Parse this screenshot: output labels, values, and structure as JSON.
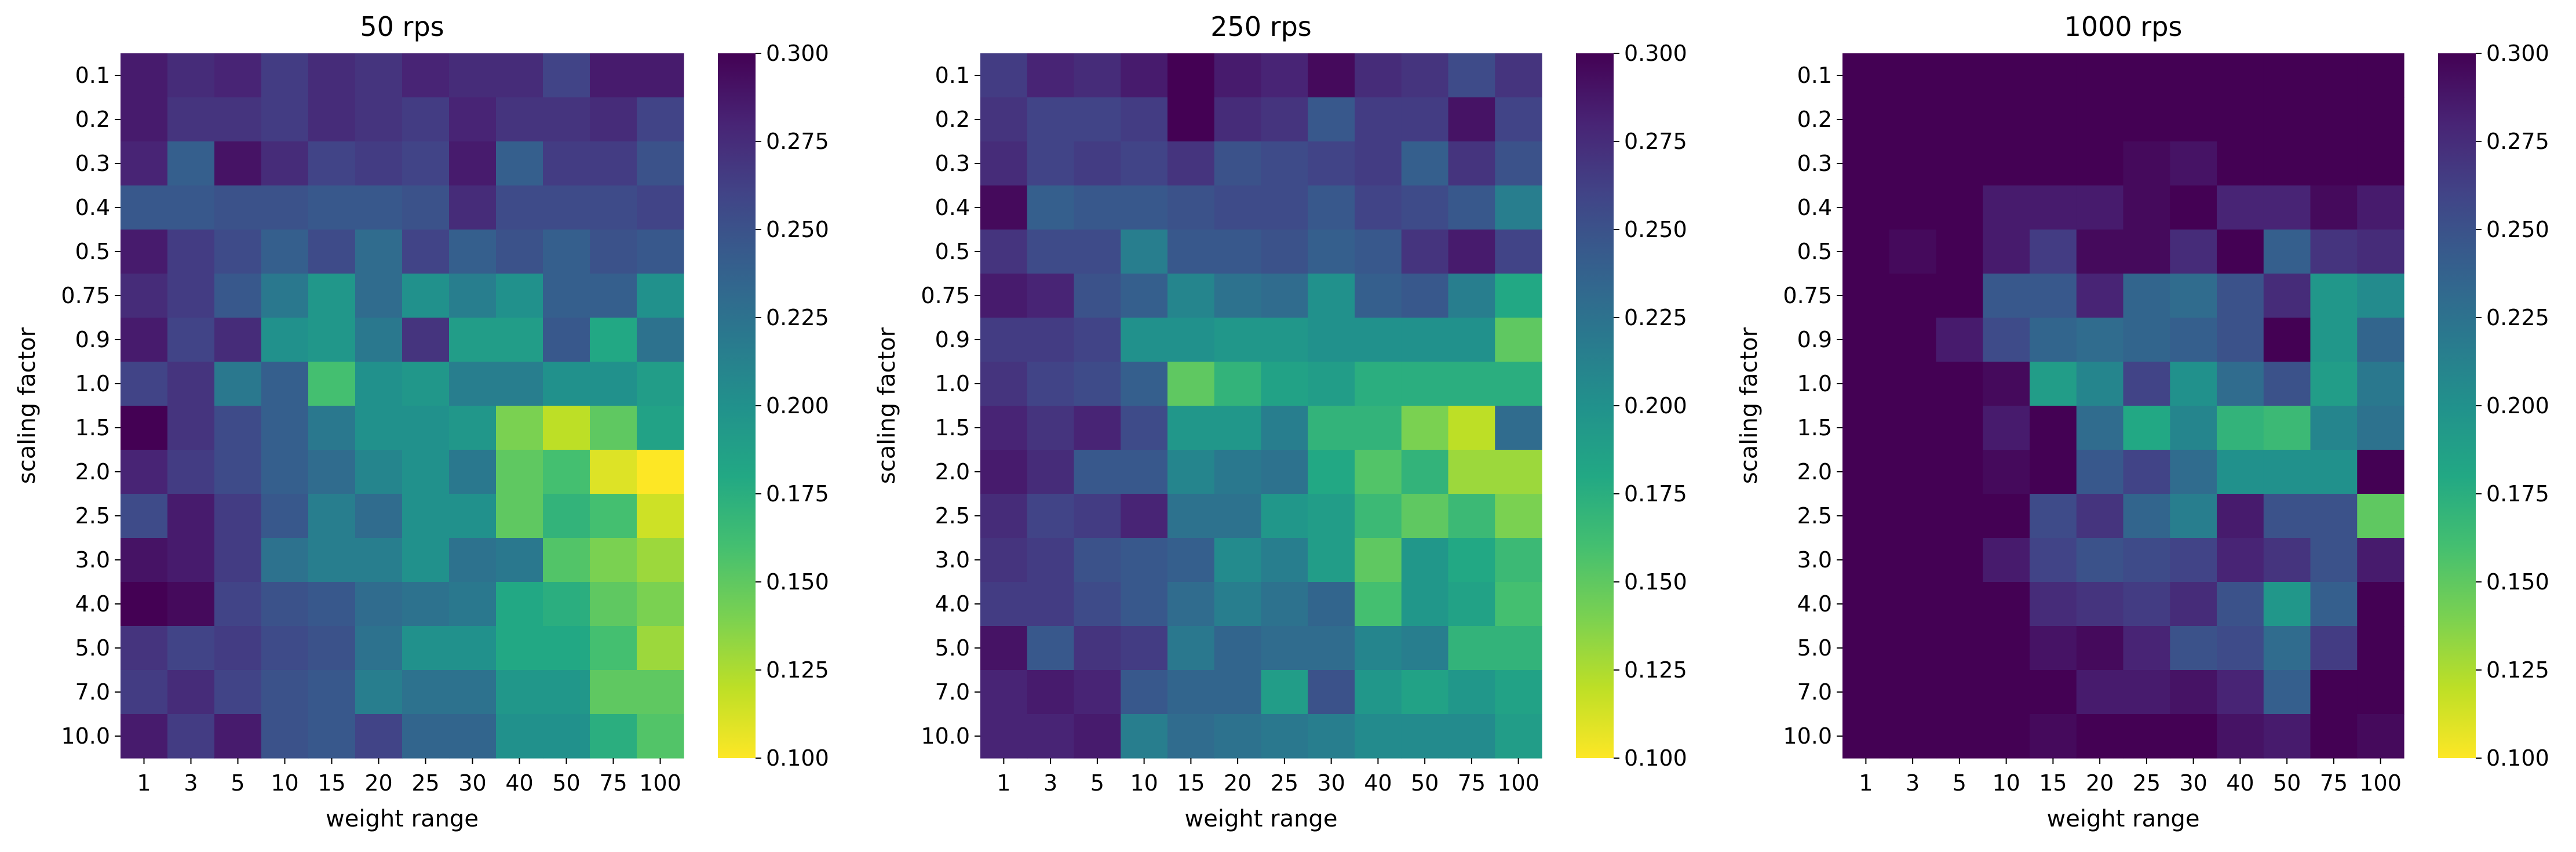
{
  "chart_data": [
    {
      "type": "heatmap",
      "title": "50 rps",
      "xlabel": "weight range",
      "ylabel": "scaling factor",
      "x_categories": [
        "1",
        "3",
        "5",
        "10",
        "15",
        "20",
        "25",
        "30",
        "40",
        "50",
        "75",
        "100"
      ],
      "y_categories": [
        "0.1",
        "0.2",
        "0.3",
        "0.4",
        "0.5",
        "0.75",
        "0.9",
        "1.0",
        "1.5",
        "2.0",
        "2.5",
        "3.0",
        "4.0",
        "5.0",
        "7.0",
        "10.0"
      ],
      "values": [
        [
          0.285,
          0.275,
          0.28,
          0.265,
          0.275,
          0.27,
          0.28,
          0.275,
          0.275,
          0.26,
          0.285,
          0.285
        ],
        [
          0.285,
          0.27,
          0.27,
          0.265,
          0.275,
          0.27,
          0.265,
          0.28,
          0.27,
          0.27,
          0.275,
          0.26
        ],
        [
          0.28,
          0.24,
          0.29,
          0.275,
          0.26,
          0.265,
          0.26,
          0.285,
          0.24,
          0.265,
          0.265,
          0.25
        ],
        [
          0.245,
          0.245,
          0.25,
          0.25,
          0.245,
          0.245,
          0.25,
          0.275,
          0.255,
          0.255,
          0.255,
          0.26
        ],
        [
          0.285,
          0.265,
          0.255,
          0.24,
          0.255,
          0.23,
          0.26,
          0.24,
          0.25,
          0.24,
          0.25,
          0.245
        ],
        [
          0.275,
          0.265,
          0.245,
          0.22,
          0.195,
          0.23,
          0.2,
          0.215,
          0.2,
          0.24,
          0.24,
          0.2
        ],
        [
          0.285,
          0.26,
          0.275,
          0.2,
          0.195,
          0.22,
          0.27,
          0.19,
          0.19,
          0.245,
          0.18,
          0.225
        ],
        [
          0.26,
          0.27,
          0.22,
          0.24,
          0.16,
          0.2,
          0.195,
          0.215,
          0.215,
          0.2,
          0.2,
          0.19
        ],
        [
          0.3,
          0.27,
          0.255,
          0.24,
          0.22,
          0.2,
          0.2,
          0.195,
          0.14,
          0.12,
          0.15,
          0.185
        ],
        [
          0.28,
          0.265,
          0.255,
          0.24,
          0.23,
          0.21,
          0.2,
          0.22,
          0.15,
          0.16,
          0.11,
          0.1
        ],
        [
          0.255,
          0.285,
          0.265,
          0.245,
          0.215,
          0.23,
          0.2,
          0.2,
          0.15,
          0.17,
          0.16,
          0.115
        ],
        [
          0.29,
          0.285,
          0.265,
          0.225,
          0.215,
          0.215,
          0.2,
          0.225,
          0.22,
          0.155,
          0.14,
          0.13
        ],
        [
          0.3,
          0.295,
          0.26,
          0.25,
          0.245,
          0.23,
          0.225,
          0.22,
          0.18,
          0.175,
          0.15,
          0.14
        ],
        [
          0.27,
          0.26,
          0.265,
          0.255,
          0.25,
          0.225,
          0.2,
          0.2,
          0.18,
          0.18,
          0.16,
          0.13
        ],
        [
          0.265,
          0.275,
          0.26,
          0.25,
          0.245,
          0.215,
          0.225,
          0.225,
          0.195,
          0.195,
          0.15,
          0.15
        ],
        [
          0.285,
          0.265,
          0.285,
          0.25,
          0.245,
          0.26,
          0.235,
          0.235,
          0.2,
          0.2,
          0.175,
          0.155
        ]
      ],
      "colorbar": {
        "min": 0.1,
        "max": 0.3,
        "ticks": [
          "0.100",
          "0.125",
          "0.150",
          "0.175",
          "0.200",
          "0.225",
          "0.250",
          "0.275",
          "0.300"
        ],
        "colormap": "viridis_r"
      },
      "show_colorbar": true
    },
    {
      "type": "heatmap",
      "title": "250 rps",
      "xlabel": "weight range",
      "ylabel": "scaling factor",
      "x_categories": [
        "1",
        "3",
        "5",
        "10",
        "15",
        "20",
        "25",
        "30",
        "40",
        "50",
        "75",
        "100"
      ],
      "y_categories": [
        "0.1",
        "0.2",
        "0.3",
        "0.4",
        "0.5",
        "0.75",
        "0.9",
        "1.0",
        "1.5",
        "2.0",
        "2.5",
        "3.0",
        "4.0",
        "5.0",
        "7.0",
        "10.0"
      ],
      "values": [
        [
          0.265,
          0.28,
          0.275,
          0.285,
          0.3,
          0.285,
          0.28,
          0.295,
          0.275,
          0.27,
          0.255,
          0.27
        ],
        [
          0.27,
          0.26,
          0.26,
          0.265,
          0.3,
          0.275,
          0.27,
          0.245,
          0.265,
          0.265,
          0.29,
          0.26
        ],
        [
          0.275,
          0.26,
          0.265,
          0.26,
          0.27,
          0.25,
          0.255,
          0.26,
          0.265,
          0.24,
          0.27,
          0.25
        ],
        [
          0.295,
          0.24,
          0.245,
          0.245,
          0.25,
          0.255,
          0.255,
          0.245,
          0.26,
          0.255,
          0.245,
          0.215
        ],
        [
          0.27,
          0.255,
          0.255,
          0.215,
          0.245,
          0.245,
          0.25,
          0.24,
          0.245,
          0.27,
          0.285,
          0.26
        ],
        [
          0.285,
          0.28,
          0.25,
          0.24,
          0.21,
          0.225,
          0.23,
          0.2,
          0.24,
          0.245,
          0.215,
          0.18
        ],
        [
          0.265,
          0.265,
          0.26,
          0.2,
          0.2,
          0.195,
          0.195,
          0.2,
          0.2,
          0.2,
          0.2,
          0.15
        ],
        [
          0.27,
          0.26,
          0.255,
          0.24,
          0.15,
          0.17,
          0.185,
          0.19,
          0.175,
          0.175,
          0.175,
          0.175
        ],
        [
          0.28,
          0.27,
          0.28,
          0.255,
          0.195,
          0.195,
          0.215,
          0.17,
          0.17,
          0.14,
          0.12,
          0.23
        ],
        [
          0.285,
          0.275,
          0.245,
          0.245,
          0.21,
          0.22,
          0.225,
          0.18,
          0.155,
          0.17,
          0.13,
          0.13
        ],
        [
          0.275,
          0.26,
          0.265,
          0.28,
          0.225,
          0.225,
          0.195,
          0.19,
          0.165,
          0.15,
          0.165,
          0.14
        ],
        [
          0.27,
          0.265,
          0.25,
          0.245,
          0.24,
          0.205,
          0.215,
          0.19,
          0.15,
          0.195,
          0.18,
          0.165
        ],
        [
          0.265,
          0.265,
          0.255,
          0.245,
          0.23,
          0.215,
          0.225,
          0.235,
          0.16,
          0.195,
          0.185,
          0.16
        ],
        [
          0.29,
          0.245,
          0.27,
          0.265,
          0.22,
          0.235,
          0.23,
          0.23,
          0.21,
          0.215,
          0.17,
          0.17
        ],
        [
          0.28,
          0.285,
          0.28,
          0.245,
          0.235,
          0.235,
          0.19,
          0.25,
          0.195,
          0.185,
          0.195,
          0.185
        ],
        [
          0.28,
          0.28,
          0.285,
          0.215,
          0.23,
          0.225,
          0.22,
          0.215,
          0.205,
          0.205,
          0.205,
          0.19
        ]
      ],
      "colorbar": {
        "min": 0.1,
        "max": 0.3,
        "ticks": [
          "0.100",
          "0.125",
          "0.150",
          "0.175",
          "0.200",
          "0.225",
          "0.250",
          "0.275",
          "0.300"
        ],
        "colormap": "viridis_r"
      },
      "show_colorbar": true
    },
    {
      "type": "heatmap",
      "title": "1000 rps",
      "xlabel": "weight range",
      "ylabel": "scaling factor",
      "x_categories": [
        "1",
        "3",
        "5",
        "10",
        "15",
        "20",
        "25",
        "30",
        "40",
        "50",
        "75",
        "100"
      ],
      "y_categories": [
        "0.1",
        "0.2",
        "0.3",
        "0.4",
        "0.5",
        "0.75",
        "0.9",
        "1.0",
        "1.5",
        "2.0",
        "2.5",
        "3.0",
        "4.0",
        "5.0",
        "7.0",
        "10.0"
      ],
      "values": [
        [
          0.3,
          0.3,
          0.3,
          0.3,
          0.3,
          0.3,
          0.3,
          0.3,
          0.3,
          0.3,
          0.3,
          0.3
        ],
        [
          0.3,
          0.3,
          0.3,
          0.3,
          0.3,
          0.3,
          0.3,
          0.3,
          0.3,
          0.3,
          0.3,
          0.3
        ],
        [
          0.3,
          0.3,
          0.3,
          0.3,
          0.3,
          0.3,
          0.295,
          0.29,
          0.3,
          0.3,
          0.3,
          0.3
        ],
        [
          0.3,
          0.3,
          0.3,
          0.285,
          0.285,
          0.285,
          0.295,
          0.3,
          0.28,
          0.28,
          0.295,
          0.285
        ],
        [
          0.3,
          0.295,
          0.3,
          0.285,
          0.265,
          0.295,
          0.295,
          0.275,
          0.3,
          0.24,
          0.27,
          0.275
        ],
        [
          0.3,
          0.3,
          0.3,
          0.245,
          0.245,
          0.28,
          0.235,
          0.23,
          0.25,
          0.275,
          0.195,
          0.205
        ],
        [
          0.3,
          0.3,
          0.285,
          0.255,
          0.235,
          0.23,
          0.235,
          0.24,
          0.25,
          0.3,
          0.195,
          0.235
        ],
        [
          0.3,
          0.3,
          0.3,
          0.295,
          0.19,
          0.21,
          0.26,
          0.2,
          0.23,
          0.25,
          0.19,
          0.22
        ],
        [
          0.3,
          0.3,
          0.3,
          0.285,
          0.3,
          0.23,
          0.18,
          0.21,
          0.17,
          0.165,
          0.21,
          0.225
        ],
        [
          0.3,
          0.3,
          0.3,
          0.295,
          0.3,
          0.245,
          0.26,
          0.23,
          0.2,
          0.2,
          0.2,
          0.3
        ],
        [
          0.3,
          0.3,
          0.3,
          0.3,
          0.255,
          0.27,
          0.235,
          0.215,
          0.285,
          0.25,
          0.25,
          0.15
        ],
        [
          0.3,
          0.3,
          0.3,
          0.285,
          0.26,
          0.25,
          0.255,
          0.26,
          0.28,
          0.27,
          0.25,
          0.285
        ],
        [
          0.3,
          0.3,
          0.3,
          0.3,
          0.275,
          0.27,
          0.265,
          0.275,
          0.25,
          0.195,
          0.24,
          0.3
        ],
        [
          0.3,
          0.3,
          0.3,
          0.3,
          0.29,
          0.295,
          0.28,
          0.25,
          0.255,
          0.23,
          0.265,
          0.3
        ],
        [
          0.3,
          0.3,
          0.3,
          0.3,
          0.3,
          0.285,
          0.285,
          0.29,
          0.28,
          0.24,
          0.3,
          0.3
        ],
        [
          0.3,
          0.3,
          0.3,
          0.3,
          0.295,
          0.3,
          0.3,
          0.3,
          0.29,
          0.285,
          0.3,
          0.295
        ]
      ],
      "colorbar": {
        "min": 0.1,
        "max": 0.3,
        "ticks": [
          "0.100",
          "0.125",
          "0.150",
          "0.175",
          "0.200",
          "0.225",
          "0.250",
          "0.275",
          "0.300"
        ],
        "colormap": "viridis_r"
      },
      "show_colorbar": true
    }
  ]
}
